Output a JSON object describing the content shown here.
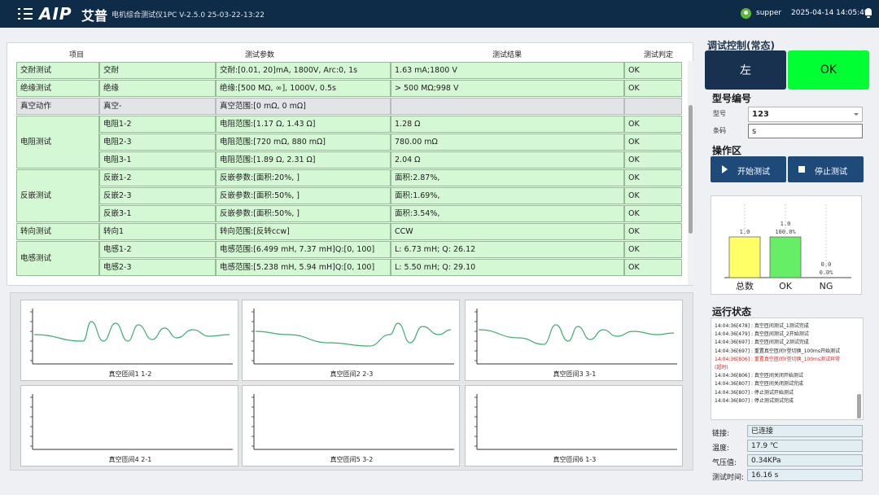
{
  "header": {
    "logo": "AIP",
    "brand": "艾普",
    "title": "电机综合测试仪1PC V-2.5.0 25-03-22-13:22",
    "user": "supper",
    "datetime": "2025-04-14 14:05:49"
  },
  "table": {
    "headers": {
      "item": "项目",
      "params": "测试参数",
      "result": "测试结果",
      "judge": "测试判定"
    },
    "groups": [
      {
        "label": "交耐测试",
        "rows": [
          {
            "name": "交耐",
            "params": "交耐:[0.01, 20]mA, 1800V, Arc:0, 1s",
            "result": "1.63 mA;1800 V",
            "judge": "OK"
          }
        ]
      },
      {
        "label": "绝缘测试",
        "rows": [
          {
            "name": "绝缘",
            "params": "绝缘:[500 MΩ, ∞], 1000V, 0.5s",
            "result": "> 500 MΩ;998 V",
            "judge": "OK"
          }
        ]
      },
      {
        "label": "真空动作",
        "rows": [
          {
            "name": "真空-",
            "params": "真空范围:[0 mΩ, 0 mΩ]",
            "result": "",
            "judge": ""
          }
        ]
      },
      {
        "label": "电阻测试",
        "rows": [
          {
            "name": "电阻1-2",
            "params": "电阻范围:[1.17 Ω, 1.43 Ω]",
            "result": "1.28 Ω",
            "judge": "OK"
          },
          {
            "name": "电阻2-3",
            "params": "电阻范围:[720 mΩ, 880 mΩ]",
            "result": "780.00 mΩ",
            "judge": "OK"
          },
          {
            "name": "电阻3-1",
            "params": "电阻范围:[1.89 Ω, 2.31 Ω]",
            "result": "2.04 Ω",
            "judge": "OK"
          }
        ]
      },
      {
        "label": "反嵌测试",
        "rows": [
          {
            "name": "反嵌1-2",
            "params": "反嵌参数:[面积:20%, ]",
            "result": "面积:2.87%,",
            "judge": "OK"
          },
          {
            "name": "反嵌2-3",
            "params": "反嵌参数:[面积:50%, ]",
            "result": "面积:1.69%,",
            "judge": "OK"
          },
          {
            "name": "反嵌3-1",
            "params": "反嵌参数:[面积:50%, ]",
            "result": "面积:3.54%,",
            "judge": "OK"
          }
        ]
      },
      {
        "label": "转向测试",
        "rows": [
          {
            "name": "转向1",
            "params": "转向范围:[反转ccw]",
            "result": "CCW",
            "judge": "OK"
          }
        ]
      },
      {
        "label": "电感测试",
        "rows": [
          {
            "name": "电感1-2",
            "params": "电感范围:[6.499 mH, 7.37 mH]Q:[0, 100]",
            "result": "L:  6.73 mH; Q: 26.12",
            "judge": "OK"
          },
          {
            "name": "电感2-3",
            "params": "电感范围:[5.238 mH, 5.94 mH]Q:[0, 100]",
            "result": "L:  5.50 mH; Q: 29.10",
            "judge": "OK"
          }
        ]
      }
    ]
  },
  "charts": [
    {
      "label": "真空匝间1 1-2"
    },
    {
      "label": "真空匝间2 2-3"
    },
    {
      "label": "真空匝间3 3-1"
    },
    {
      "label": "真空匝间4 2-1"
    },
    {
      "label": "真空匝间5 3-2"
    },
    {
      "label": "真空匝间6 1-3"
    }
  ],
  "control": {
    "title": "调试控制(常态)",
    "left_label": "左",
    "ok_label": "OK"
  },
  "model": {
    "title": "型号编号",
    "model_label": "型号",
    "model_value": "123",
    "barcode_label": "条码",
    "barcode_value": "s"
  },
  "operation": {
    "title": "操作区",
    "start_label": "开始测试",
    "stop_label": "停止测试"
  },
  "stats": {
    "chart_data": {
      "type": "bar",
      "categories": [
        "总数",
        "OK",
        "NG"
      ],
      "values": [
        1.0,
        1.0,
        0.0
      ],
      "percent_labels": [
        "",
        "100.0%",
        "0.0%"
      ],
      "value_labels": [
        "1.0",
        "1.0",
        "0.0"
      ],
      "colors": [
        "#ffff66",
        "#66ee66",
        "#ee6666"
      ],
      "ylim": [
        0,
        1.2
      ]
    }
  },
  "status": {
    "title": "运行状态",
    "log": [
      {
        "text": "14:04:36[478] : 真空匝间测试_1测试完成",
        "error": false
      },
      {
        "text": "14:04:36[479] : 真空匝间测试_2开始测试",
        "error": false
      },
      {
        "text": "14:04:36[697] : 真空匝间测试_2测试完成",
        "error": false
      },
      {
        "text": "14:04:36[697] : 重置真空匝间Y型切换_100ms开始测试",
        "error": false
      },
      {
        "text": "14:04:36[806] : 重置真空匝间Y型切换_100ms测试异常",
        "error": true
      },
      {
        "text": "(超时)",
        "error": true
      },
      {
        "text": "14:04:36[806] : 真空匝间关闭开始测试",
        "error": false
      },
      {
        "text": "14:04:36[807] : 真空匝间关闭测试完成",
        "error": false
      },
      {
        "text": "14:04:36[807] : 停止测试开始测试",
        "error": false
      },
      {
        "text": "14:04:36[807] : 停止测试测试完成",
        "error": false
      }
    ],
    "connection_label": "链接:",
    "connection_value": "已连接",
    "temperature_label": "温度:",
    "temperature_value": "17.9 ℃",
    "pressure_label": "气压值:",
    "pressure_value": "0.34KPa",
    "test_time_label": "测试时间:",
    "test_time_value": "16.16 s"
  }
}
